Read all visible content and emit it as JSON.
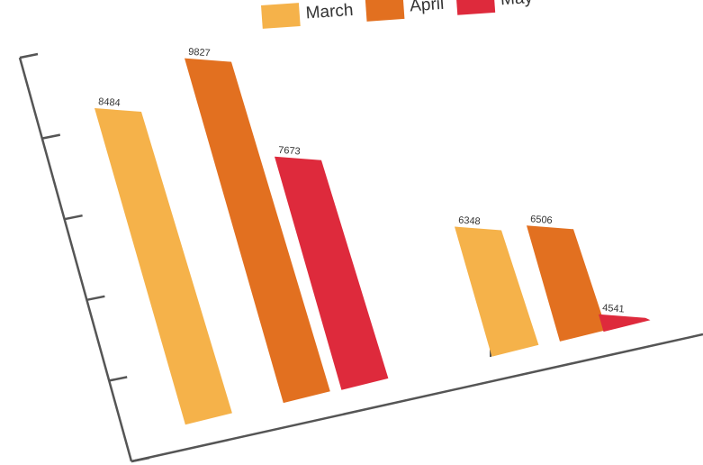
{
  "chart_data": {
    "type": "bar",
    "categories": [
      "",
      ""
    ],
    "series": [
      {
        "name": "March",
        "values": [
          8484,
          6348
        ],
        "value_labels": [
          "8484",
          "6348"
        ],
        "color": "#f5b24a"
      },
      {
        "name": "April",
        "values": [
          9827,
          6506
        ],
        "value_labels": [
          "9827",
          "6506"
        ],
        "color": "#e27020"
      },
      {
        "name": "May",
        "values": [
          7673,
          4541
        ],
        "value_labels": [
          "7673",
          "4541"
        ],
        "color": "#de2a3c"
      }
    ],
    "title": "",
    "xlabel": "",
    "ylabel": "",
    "ylim": [
      0,
      10000
    ],
    "grid": false,
    "legend": "top",
    "axis_color": "#555555"
  }
}
